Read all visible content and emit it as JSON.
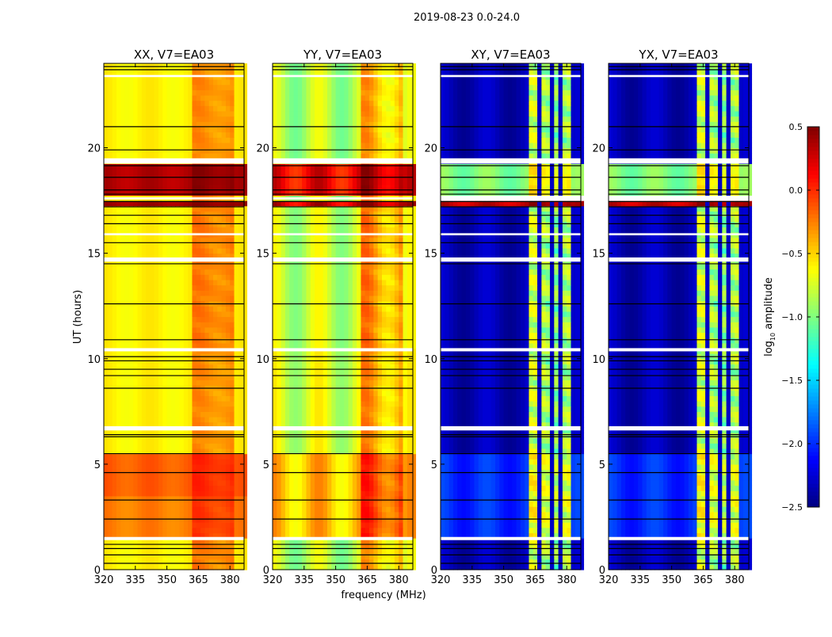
{
  "chart_data": {
    "type": "heatmap",
    "title": "2019-08-23 0.0-24.0",
    "xlabel": "frequency (MHz)",
    "ylabel": "UT (hours)",
    "xlim": [
      320,
      386.7
    ],
    "ylim": [
      0,
      24
    ],
    "xticks": [
      320,
      335,
      350,
      365,
      380
    ],
    "yticks": [
      0,
      5,
      10,
      15,
      20
    ],
    "colorbar": {
      "label": "log10 amplitude",
      "label_main": "log",
      "label_sub": "10",
      "label_rest": " amplitude",
      "colormap": "jet",
      "range": [
        -2.5,
        0.5
      ],
      "ticks": [
        "0.5",
        "0.0",
        "−0.5",
        "−1.0",
        "−1.5",
        "−2.0",
        "−2.5"
      ],
      "tick_values": [
        0.5,
        0.0,
        -0.5,
        -1.0,
        -1.5,
        -2.0,
        -2.5
      ]
    },
    "rfi_band_mhz": [
      362,
      381
    ],
    "flagged_hours": [
      [
        1.4,
        1.55
      ],
      [
        6.6,
        6.8
      ],
      [
        10.35,
        10.5
      ],
      [
        14.6,
        14.8
      ],
      [
        15.85,
        15.95
      ],
      [
        17.55,
        17.65
      ],
      [
        19.25,
        19.5
      ],
      [
        23.35,
        23.45
      ]
    ],
    "black_line_hours": [
      0.3,
      0.7,
      1.0,
      1.2,
      2.4,
      3.3,
      4.6,
      5.5,
      6.3,
      6.4,
      8.6,
      9.2,
      9.5,
      9.9,
      10.1,
      10.9,
      12.6,
      14.5,
      15.5,
      16.4,
      16.8,
      17.2,
      17.45,
      17.8,
      18.0,
      18.6,
      19.15,
      19.9,
      21.0,
      23.7,
      23.85
    ],
    "panels": [
      {
        "title": "XX, V7=EA03",
        "ripple": 0.05,
        "rfi_notches_mhz": [],
        "bands": [
          {
            "t0": 0,
            "t1": 1.5,
            "base": -0.6,
            "rfi": 0.35
          },
          {
            "t0": 1.5,
            "t1": 3.4,
            "base": -0.25,
            "rfi": 0.2
          },
          {
            "t0": 3.4,
            "t1": 5.5,
            "base": -0.15,
            "rfi": 0.15
          },
          {
            "t0": 5.5,
            "t1": 10.5,
            "base": -0.6,
            "rfi": 0.3
          },
          {
            "t0": 10.5,
            "t1": 17.3,
            "base": -0.6,
            "rfi": 0.35
          },
          {
            "t0": 17.3,
            "t1": 17.6,
            "base": 0.4,
            "rfi": 0.05
          },
          {
            "t0": 17.6,
            "t1": 17.8,
            "base": -0.6,
            "rfi": 0.3
          },
          {
            "t0": 17.8,
            "t1": 19.25,
            "base": 0.35,
            "rfi": 0.1
          },
          {
            "t0": 19.25,
            "t1": 24,
            "base": -0.6,
            "rfi": 0.3
          }
        ]
      },
      {
        "title": "YY, V7=EA03",
        "ripple": 0.2,
        "rfi_notches_mhz": [],
        "bands": [
          {
            "t0": 0,
            "t1": 1.5,
            "base": -0.85,
            "rfi": 0.4
          },
          {
            "t0": 1.5,
            "t1": 5.5,
            "base": -0.45,
            "rfi": 0.35
          },
          {
            "t0": 5.5,
            "t1": 10.5,
            "base": -0.75,
            "rfi": 0.35
          },
          {
            "t0": 10.5,
            "t1": 17.3,
            "base": -0.8,
            "rfi": 0.45
          },
          {
            "t0": 17.3,
            "t1": 17.6,
            "base": 0.25,
            "rfi": 0.1
          },
          {
            "t0": 17.6,
            "t1": 17.8,
            "base": -0.8,
            "rfi": 0.4
          },
          {
            "t0": 17.8,
            "t1": 19.25,
            "base": 0.15,
            "rfi": 0.15
          },
          {
            "t0": 19.25,
            "t1": 24,
            "base": -0.85,
            "rfi": 0.4
          }
        ]
      },
      {
        "title": "XY, V7=EA03",
        "ripple": 0.1,
        "rfi_notches_mhz": [
          366.5,
          372.5,
          377.5
        ],
        "bands": [
          {
            "t0": 0,
            "t1": 1.5,
            "base": -2.35,
            "rfi": 1.5
          },
          {
            "t0": 1.5,
            "t1": 5.5,
            "base": -2.0,
            "rfi": 1.3
          },
          {
            "t0": 5.5,
            "t1": 10.5,
            "base": -2.35,
            "rfi": 1.5
          },
          {
            "t0": 10.5,
            "t1": 17.2,
            "base": -2.35,
            "rfi": 1.5
          },
          {
            "t0": 17.2,
            "t1": 17.55,
            "base": 0.3,
            "rfi": 0.1
          },
          {
            "t0": 17.65,
            "t1": 19.25,
            "base": -1.0,
            "rfi": 0.4
          },
          {
            "t0": 19.25,
            "t1": 24,
            "base": -2.35,
            "rfi": 1.5
          }
        ]
      },
      {
        "title": "YX, V7=EA03",
        "ripple": 0.1,
        "rfi_notches_mhz": [
          366.5,
          372.5,
          377.5
        ],
        "bands": [
          {
            "t0": 0,
            "t1": 1.5,
            "base": -2.35,
            "rfi": 1.5
          },
          {
            "t0": 1.5,
            "t1": 5.5,
            "base": -2.0,
            "rfi": 1.3
          },
          {
            "t0": 5.5,
            "t1": 10.5,
            "base": -2.35,
            "rfi": 1.5
          },
          {
            "t0": 10.5,
            "t1": 17.2,
            "base": -2.35,
            "rfi": 1.5
          },
          {
            "t0": 17.2,
            "t1": 17.55,
            "base": 0.3,
            "rfi": 0.1
          },
          {
            "t0": 17.65,
            "t1": 19.25,
            "base": -1.0,
            "rfi": 0.4
          },
          {
            "t0": 19.25,
            "t1": 24,
            "base": -2.35,
            "rfi": 1.5
          }
        ]
      }
    ]
  }
}
